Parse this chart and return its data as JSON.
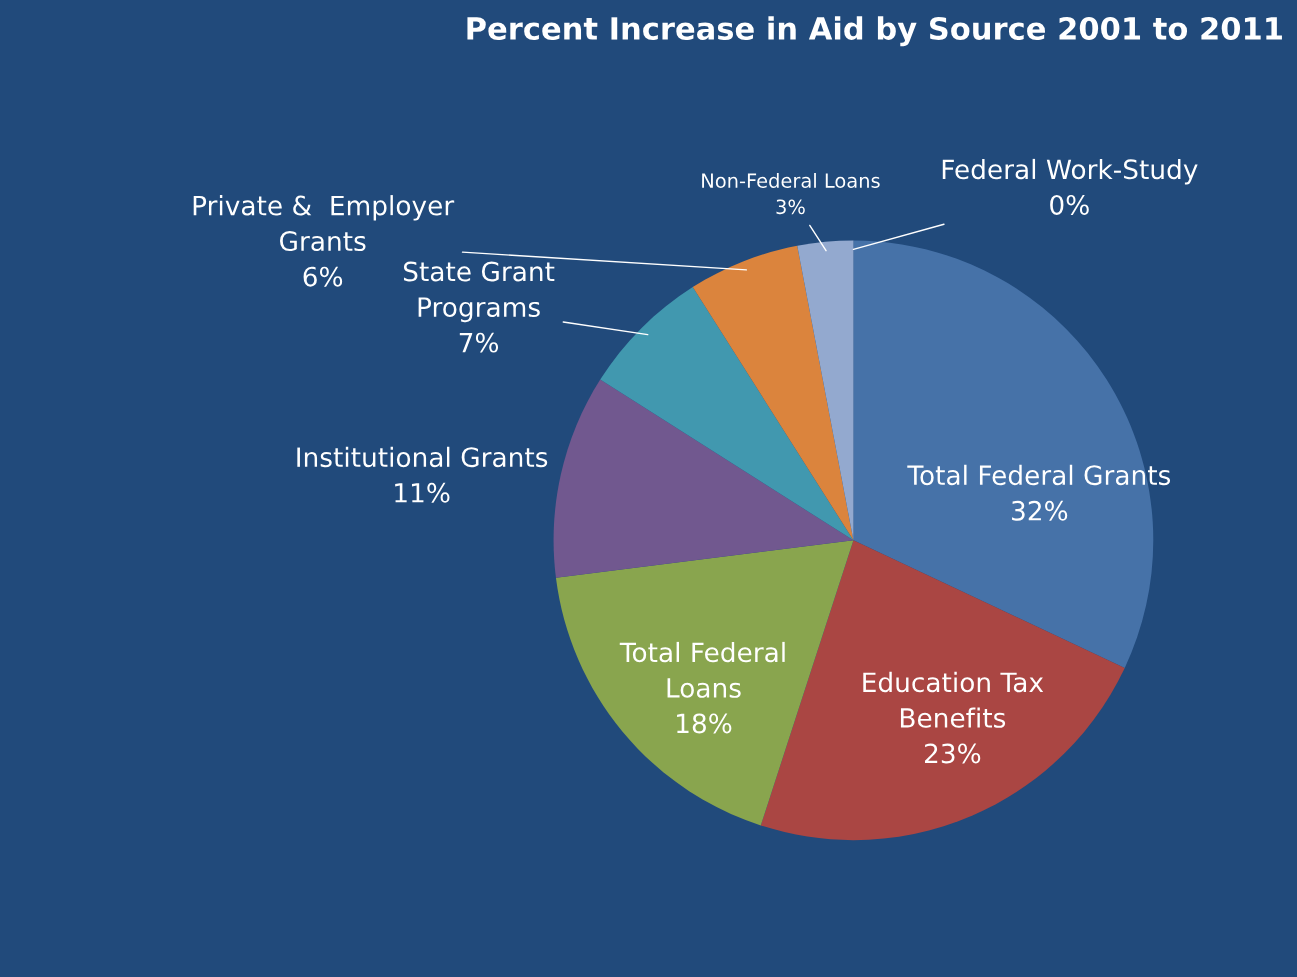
{
  "chart_data": {
    "type": "pie",
    "title": "Percent Increase in Aid by Source 2001 to 2011",
    "categories": [
      "Total Federal Grants",
      "Education Tax\nBenefits",
      "Total Federal\nLoans",
      "Institutional Grants",
      "State Grant\nPrograms",
      "Private &  Employer\nGrants",
      "Non-Federal Loans",
      "Federal Work-Study"
    ],
    "values": [
      32,
      23,
      18,
      11,
      7,
      6,
      3,
      0
    ],
    "colors": [
      "#4672a8",
      "#aa4643",
      "#89a54e",
      "#71588f",
      "#4198af",
      "#db843d",
      "#93a9cf",
      "#d16e6e"
    ],
    "value_labels": [
      "32%",
      "23%",
      "18%",
      "11%",
      "7%",
      "6%",
      "3%",
      "0%"
    ],
    "legend": false
  }
}
